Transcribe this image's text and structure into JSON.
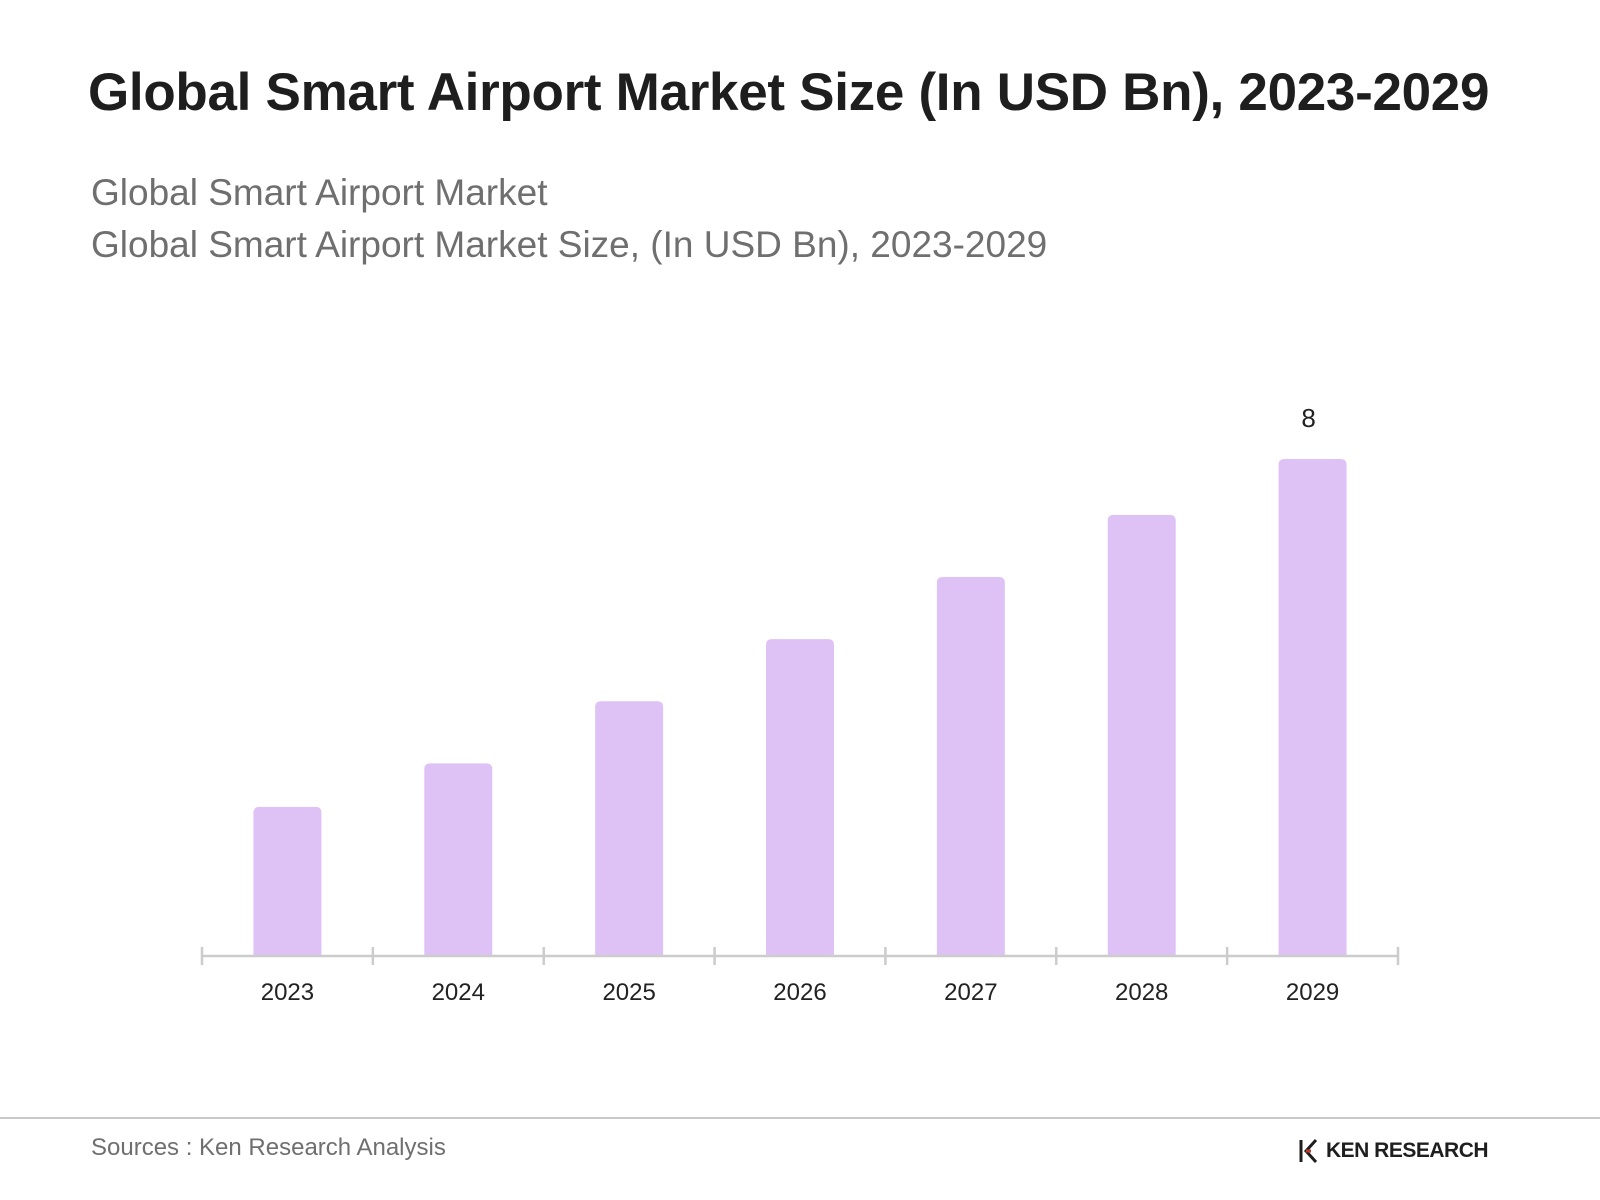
{
  "header": {
    "title": "Global Smart Airport Market Size (In USD Bn), 2023-2029",
    "subtitle_line1": "Global Smart Airport Market",
    "subtitle_line2": "Global Smart Airport Market Size, (In USD Bn), 2023-2029"
  },
  "chart_data": {
    "type": "bar",
    "title": "Global Smart Airport Market Size (In USD Bn), 2023-2029",
    "categories": [
      "2023",
      "2024",
      "2025",
      "2026",
      "2027",
      "2028",
      "2029"
    ],
    "values": [
      2.4,
      3.1,
      4.1,
      5.1,
      6.1,
      7.1,
      8.0
    ],
    "data_labels": {
      "2029": "8"
    },
    "ylim": [
      0,
      8
    ],
    "grid": false,
    "bar_color": "#dfc2f5",
    "axis_color": "#cccccc",
    "label_color": "#222222"
  },
  "footer": {
    "source": "Sources : Ken Research Analysis",
    "brand": "KEN RESEARCH"
  }
}
